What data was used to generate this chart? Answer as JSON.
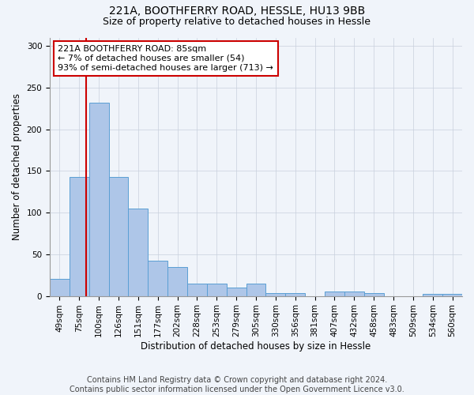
{
  "title1": "221A, BOOTHFERRY ROAD, HESSLE, HU13 9BB",
  "title2": "Size of property relative to detached houses in Hessle",
  "xlabel": "Distribution of detached houses by size in Hessle",
  "ylabel": "Number of detached properties",
  "categories": [
    "49sqm",
    "75sqm",
    "100sqm",
    "126sqm",
    "151sqm",
    "177sqm",
    "202sqm",
    "228sqm",
    "253sqm",
    "279sqm",
    "305sqm",
    "330sqm",
    "356sqm",
    "381sqm",
    "407sqm",
    "432sqm",
    "458sqm",
    "483sqm",
    "509sqm",
    "534sqm",
    "560sqm"
  ],
  "values": [
    20,
    143,
    232,
    143,
    105,
    42,
    35,
    15,
    15,
    10,
    15,
    3,
    3,
    0,
    5,
    5,
    3,
    0,
    0,
    2,
    2
  ],
  "bar_color": "#aec6e8",
  "bar_edge_color": "#5a9fd4",
  "annotation_text_line1": "221A BOOTHFERRY ROAD: 85sqm",
  "annotation_text_line2": "← 7% of detached houses are smaller (54)",
  "annotation_text_line3": "93% of semi-detached houses are larger (713) →",
  "annotation_box_color": "#ffffff",
  "annotation_box_edge": "#cc0000",
  "vline_color": "#cc0000",
  "vline_x": 1.35,
  "ylim": [
    0,
    310
  ],
  "footer": "Contains HM Land Registry data © Crown copyright and database right 2024.\nContains public sector information licensed under the Open Government Licence v3.0.",
  "title1_fontsize": 10,
  "title2_fontsize": 9,
  "xlabel_fontsize": 8.5,
  "ylabel_fontsize": 8.5,
  "tick_fontsize": 7.5,
  "annotation_fontsize": 8,
  "footer_fontsize": 7,
  "bg_color": "#f0f4fa"
}
